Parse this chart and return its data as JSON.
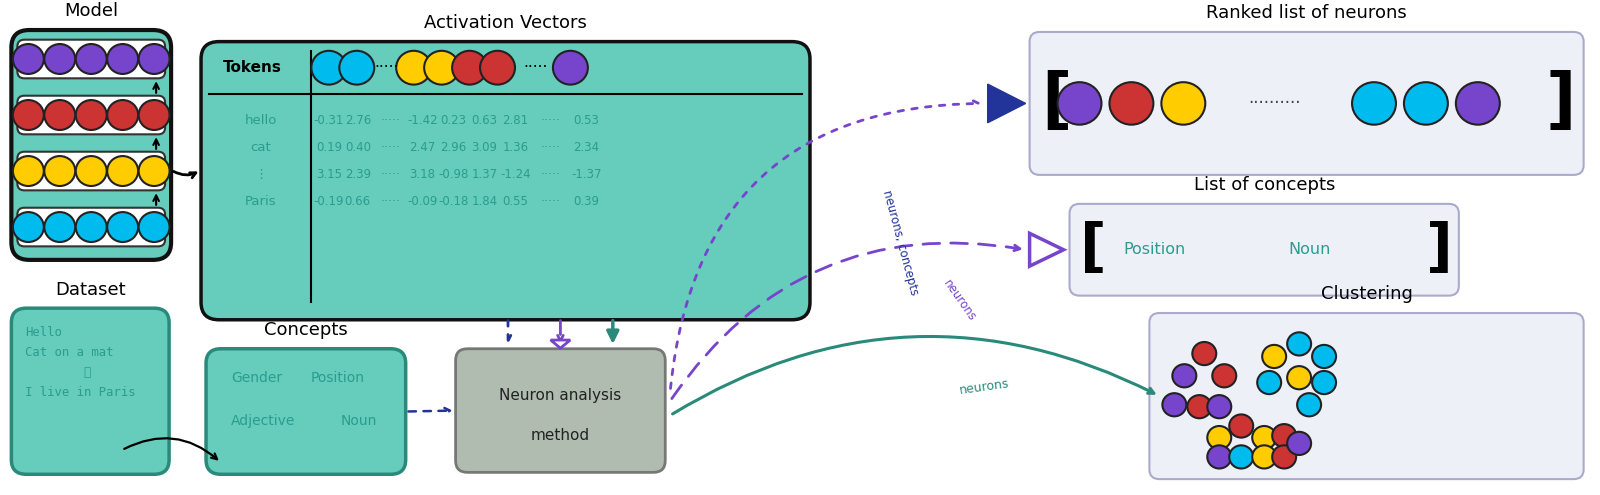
{
  "teal_fill": "#66ccbb",
  "teal_border": "#2a8a7a",
  "teal_text": "#2a9d8f",
  "gray_fill": "#aab8aa",
  "gray_border": "#888888",
  "purple": "#7744cc",
  "red": "#cc3333",
  "yellow": "#ffcc00",
  "cyan": "#00bbee",
  "navy": "#223399",
  "ranked_bg": "#eef0f8",
  "concepts_bg": "#eef0f8",
  "cluster_bg": "#eef0f8",
  "model_rows": [
    "#7744cc",
    "#cc3333",
    "#ffcc00",
    "#00bbee"
  ],
  "token_header_circles": [
    {
      "color": "#00bbee",
      "x": 1.42
    },
    {
      "color": "#00bbee",
      "x": 1.72
    },
    {
      "color": "#ffcc00",
      "x": 2.42
    },
    {
      "color": "#ffcc00",
      "x": 2.72
    },
    {
      "color": "#cc3333",
      "x": 3.02
    },
    {
      "color": "#cc3333",
      "x": 3.32
    },
    {
      "color": "#7744cc",
      "x": 4.02
    }
  ],
  "ranked_circles": [
    "#7744cc",
    "#cc3333",
    "#ffcc00",
    "#00bbee",
    "#00bbee",
    "#7744cc"
  ],
  "table_rows": [
    {
      "label": "hello",
      "vals": [
        "-0.31",
        "2.76",
        "·····",
        "-1.42",
        "0.23",
        "0.63",
        "2.81",
        "·····",
        "0.53"
      ]
    },
    {
      "label": "cat",
      "vals": [
        "0.19",
        "0.40",
        "·····",
        "2.47",
        "2.96",
        "3.09",
        "1.36",
        "·····",
        "2.34"
      ]
    },
    {
      "label": "⋮",
      "vals": [
        "3.15",
        "2.39",
        "·····",
        "3.18",
        "-0.98",
        "1.37",
        "-1.24",
        "·····",
        "-1.37"
      ]
    },
    {
      "label": "Paris",
      "vals": [
        "-0.19",
        "0.66",
        "·····",
        "-0.09",
        "-0.18",
        "1.84",
        "0.55",
        "·····",
        "0.39"
      ]
    }
  ]
}
